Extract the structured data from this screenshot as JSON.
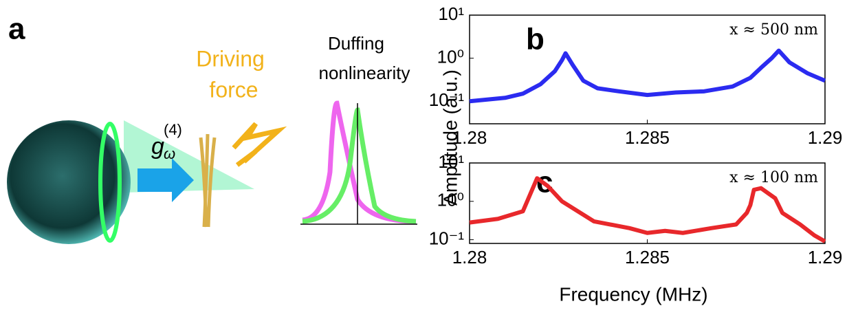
{
  "panel_a": {
    "label": "a",
    "driving": "Driving",
    "force": "force",
    "duffing": "Duffing",
    "nonlinearity": "nonlinearity",
    "symbol": {
      "base": "g",
      "sub": "ω",
      "sup": "(4)"
    }
  },
  "chart_data": [
    {
      "type": "line",
      "panel": "b",
      "annotation": "x ≈ 500 nm",
      "ylabel": "Amplitude (a.u.)",
      "log_y": true,
      "xlim": [
        1.28,
        1.29
      ],
      "xticks": [
        1.28,
        1.285,
        1.29
      ],
      "ylim": [
        0.03,
        10
      ],
      "yticks": [
        {
          "value": 10,
          "label": "10¹"
        },
        {
          "value": 1,
          "label": "10⁰"
        },
        {
          "value": 0.1,
          "label": "10⁻¹"
        }
      ],
      "x": [
        1.28,
        1.281,
        1.2815,
        1.282,
        1.2824,
        1.2826,
        1.2827,
        1.2829,
        1.2832,
        1.2836,
        1.2842,
        1.285,
        1.2858,
        1.2866,
        1.2874,
        1.2879,
        1.2882,
        1.2885,
        1.2887,
        1.289,
        1.2895,
        1.29
      ],
      "series": [
        {
          "color": "#2b2bf0",
          "values": [
            0.1,
            0.12,
            0.15,
            0.25,
            0.5,
            0.9,
            1.3,
            0.7,
            0.3,
            0.2,
            0.17,
            0.14,
            0.16,
            0.17,
            0.22,
            0.35,
            0.6,
            1.0,
            1.5,
            0.8,
            0.45,
            0.3
          ]
        }
      ]
    },
    {
      "type": "line",
      "panel": "c",
      "annotation": "x ≈ 100 nm",
      "xlabel": "Frequency (MHz)",
      "log_y": true,
      "xlim": [
        1.28,
        1.29
      ],
      "xticks": [
        1.28,
        1.285,
        1.29
      ],
      "ylim": [
        0.08,
        10
      ],
      "yticks": [
        {
          "value": 10,
          "label": "10¹"
        },
        {
          "value": 1,
          "label": "10⁰"
        },
        {
          "value": 0.1,
          "label": "10⁻¹"
        }
      ],
      "x": [
        1.28,
        1.2808,
        1.2815,
        1.2819,
        1.2822,
        1.2826,
        1.2835,
        1.2845,
        1.285,
        1.2855,
        1.286,
        1.2868,
        1.2875,
        1.2878,
        1.2879,
        1.288,
        1.2882,
        1.2886,
        1.2888,
        1.2893,
        1.2897,
        1.29
      ],
      "series": [
        {
          "color": "#e8282b",
          "values": [
            0.28,
            0.35,
            0.55,
            4,
            2.5,
            1.0,
            0.3,
            0.2,
            0.15,
            0.17,
            0.15,
            0.2,
            0.25,
            0.5,
            0.8,
            2,
            2.2,
            1.2,
            0.5,
            0.25,
            0.13,
            0.09
          ]
        }
      ]
    }
  ]
}
